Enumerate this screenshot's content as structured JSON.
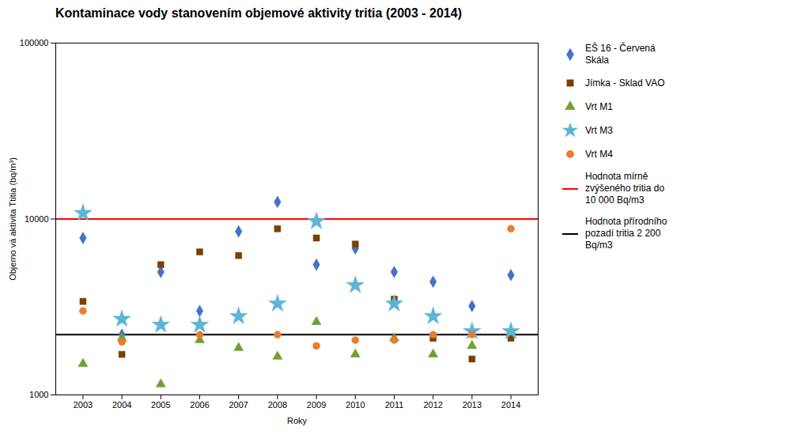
{
  "chart_data": {
    "type": "scatter",
    "title": "Kontaminace vody stanovením objemové aktivity tritia (2003 - 2014)",
    "x_label": "Roky",
    "y_label": "Objemo vá aktivita Ttitia (bq/m³)",
    "log": "y",
    "grid": false,
    "legend": "right",
    "xlim": [
      2002.3,
      2014.7
    ],
    "xticks": [
      2003,
      2004,
      2005,
      2006,
      2007,
      2008,
      2009,
      2010,
      2011,
      2012,
      2013,
      2014
    ],
    "ylim": [
      1000,
      100000
    ],
    "yticks": [
      1000,
      10000,
      100000
    ],
    "x": [
      2003,
      2004,
      2005,
      2006,
      2007,
      2008,
      2009,
      2010,
      2011,
      2012,
      2013,
      2014
    ],
    "series": [
      {
        "name": "EŠ 16 - Červená\nSkála",
        "color": "#4472c4",
        "marker": "diamond",
        "values": [
          7800,
          2200,
          5000,
          3000,
          8500,
          12500,
          5500,
          6800,
          5000,
          4400,
          3200,
          4800
        ]
      },
      {
        "name": "Jímka - Sklad VAO",
        "color": "#7b3f00",
        "marker": "square",
        "values": [
          3400,
          1700,
          5500,
          6500,
          6200,
          8800,
          7800,
          7200,
          3500,
          2100,
          1600,
          2100
        ]
      },
      {
        "name": "Vrt M1",
        "color": "#70a030",
        "marker": "triangle",
        "values": [
          1500,
          2100,
          1150,
          2050,
          1850,
          1650,
          2600,
          1700,
          2100,
          1700,
          1900,
          2300
        ]
      },
      {
        "name": "Vrt M3",
        "color": "#5bb5d5",
        "marker": "star",
        "values": [
          10800,
          2700,
          2500,
          2500,
          2800,
          3300,
          9700,
          4200,
          3300,
          2800,
          2300,
          2300
        ]
      },
      {
        "name": "Vrt M4",
        "color": "#e97c30",
        "marker": "circle",
        "values": [
          3000,
          2000,
          null,
          2200,
          null,
          2200,
          1900,
          2050,
          2050,
          2200,
          2200,
          8800
        ]
      }
    ],
    "reference_lines": [
      {
        "name": "Hodnota mírně\nzvýšeného tritia do\n10 000 Bq/m3",
        "y": 10000,
        "color": "red"
      },
      {
        "name": "Hodnota přírodního\npozadí tritia 2 200\nBq/m3",
        "y": 2200,
        "color": "black"
      }
    ]
  }
}
